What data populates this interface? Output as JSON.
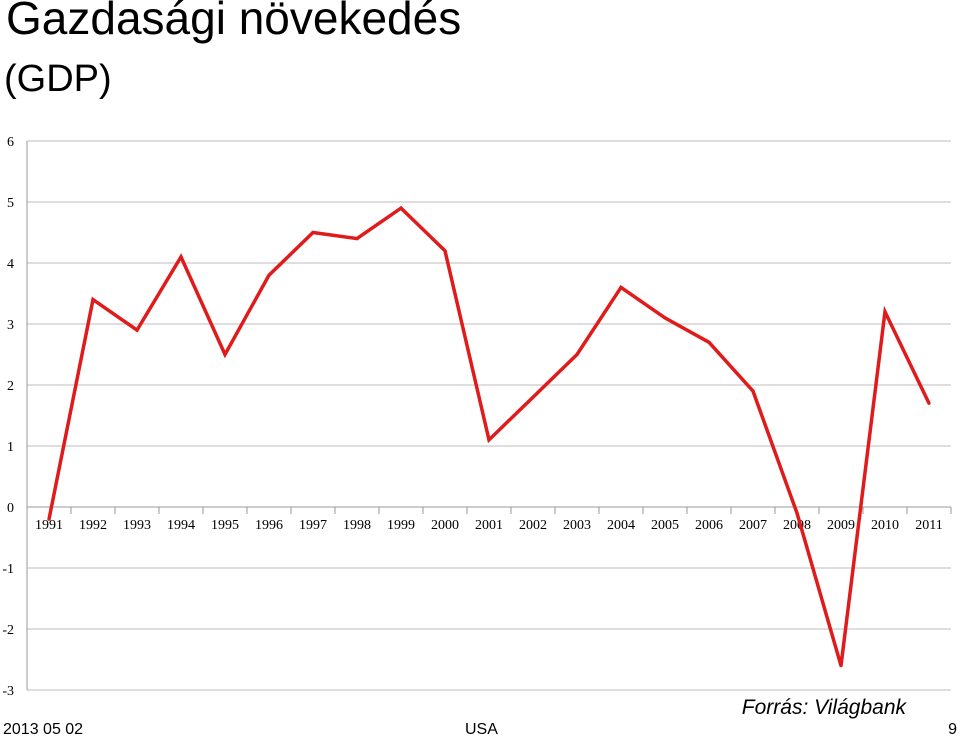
{
  "slide": {
    "title": "Gazdasági növekedés",
    "subtitle": "(GDP)",
    "source": "Forrás: Világbank",
    "footer_date": "2013 05 02",
    "footer_center": "USA",
    "page_number": "9"
  },
  "chart_data": {
    "type": "line",
    "title": "",
    "xlabel": "",
    "ylabel": "",
    "categories": [
      "1991",
      "1992",
      "1993",
      "1994",
      "1995",
      "1996",
      "1997",
      "1998",
      "1999",
      "2000",
      "2001",
      "2002",
      "2003",
      "2004",
      "2005",
      "2006",
      "2007",
      "2008",
      "2009",
      "2010",
      "2011"
    ],
    "series": [
      {
        "values": [
          -0.2,
          3.4,
          2.9,
          4.1,
          2.5,
          3.8,
          4.5,
          4.4,
          4.9,
          4.2,
          1.1,
          1.8,
          2.5,
          3.6,
          3.1,
          2.7,
          1.9,
          -0.1,
          -2.6,
          3.2,
          1.7
        ],
        "color": "#e01b1b"
      }
    ],
    "ylim": [
      -3,
      6
    ],
    "yticks": [
      -3,
      -2,
      -1,
      0,
      1,
      2,
      3,
      4,
      5,
      6
    ],
    "grid": true,
    "legend": "none",
    "colors": {
      "grid": "#bdbdbd",
      "axis": "#9a9a9a",
      "line": "#e01b1b"
    }
  }
}
